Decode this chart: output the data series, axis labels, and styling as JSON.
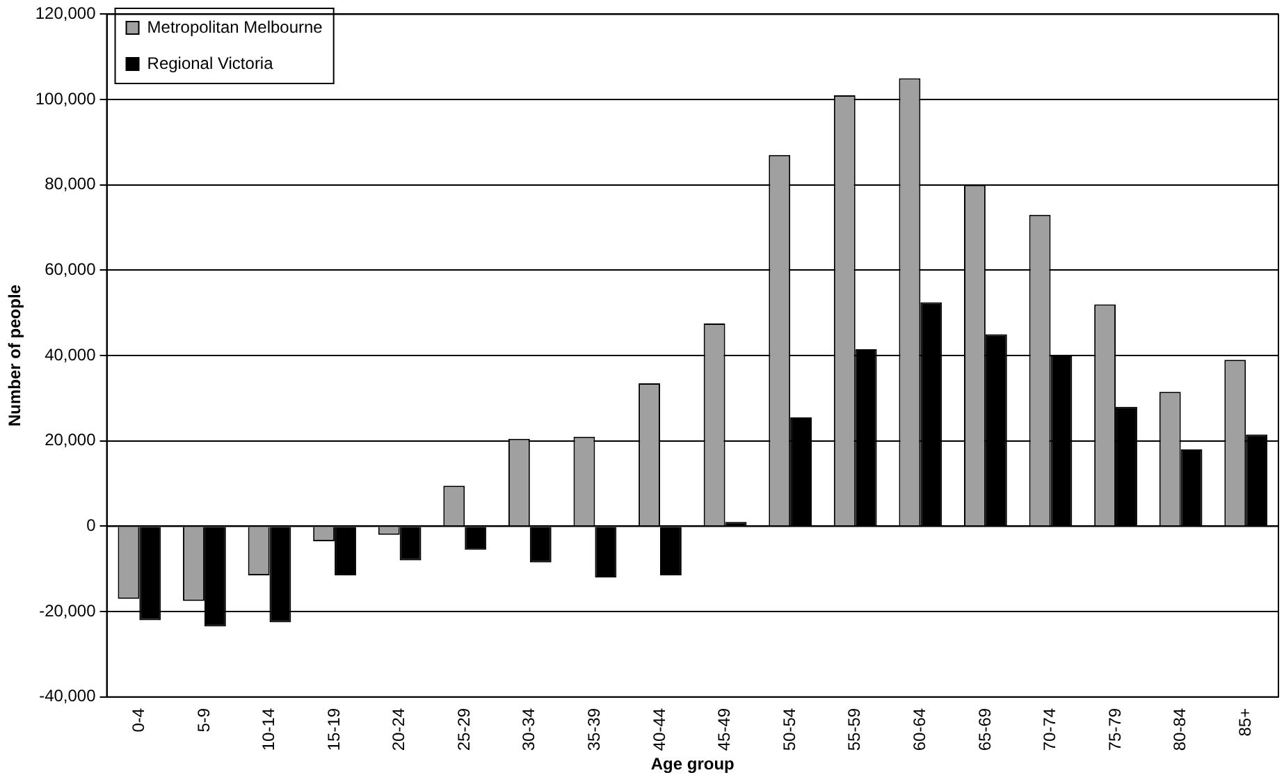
{
  "chart_data": {
    "type": "bar",
    "xlabel": "Age group",
    "ylabel": "Number of people",
    "categories": [
      "0-4",
      "5-9",
      "10-14",
      "15-19",
      "20-24",
      "25-29",
      "30-34",
      "35-39",
      "40-44",
      "45-49",
      "50-54",
      "55-59",
      "60-64",
      "65-69",
      "70-74",
      "75-79",
      "80-84",
      "85+"
    ],
    "series": [
      {
        "name": "Metropolitan Melbourne",
        "color": "#a0a0a0",
        "values": [
          -17000,
          -17500,
          -11500,
          -3500,
          -2000,
          9500,
          20500,
          21000,
          33500,
          47500,
          87000,
          101000,
          105000,
          80000,
          73000,
          52000,
          31500,
          39000
        ]
      },
      {
        "name": "Regional Victoria",
        "color": "#000000",
        "values": [
          -22000,
          -23500,
          -22500,
          -11500,
          -8000,
          -5500,
          -8500,
          -12000,
          -11500,
          1000,
          25500,
          41500,
          52500,
          45000,
          40000,
          28000,
          18000,
          21500
        ]
      }
    ],
    "ylim": [
      -40000,
      120000
    ],
    "yticks": [
      {
        "value": -40000,
        "label": "-40,000"
      },
      {
        "value": -20000,
        "label": "-20,000"
      },
      0,
      {
        "value": 20000,
        "label": "20,000"
      },
      {
        "value": 40000,
        "label": "40,000"
      },
      {
        "value": 60000,
        "label": "60,000"
      },
      {
        "value": 80000,
        "label": "80,000"
      },
      {
        "value": 100000,
        "label": "100,000"
      },
      {
        "value": 120000,
        "label": "120,000"
      }
    ],
    "grid": "y",
    "legend": "top left"
  }
}
